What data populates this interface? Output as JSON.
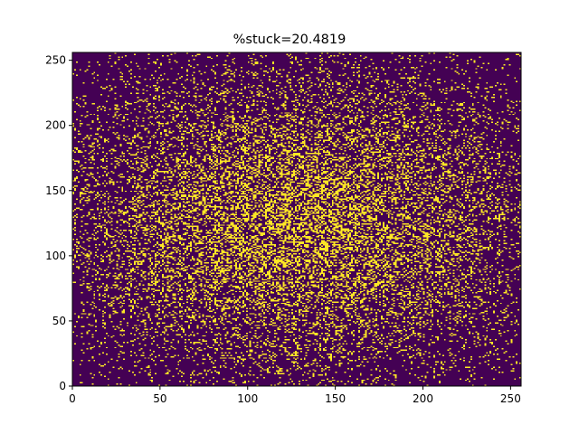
{
  "chart_data": {
    "type": "heatmap",
    "title": "%stuck=20.4819",
    "xlabel": "",
    "ylabel": "",
    "xlim": [
      0,
      256
    ],
    "ylim": [
      0,
      256
    ],
    "x_ticks": [
      0,
      50,
      100,
      150,
      200,
      250
    ],
    "y_ticks": [
      0,
      50,
      100,
      150,
      200,
      250
    ],
    "grid_size": 256,
    "stuck_fraction_percent": 20.4819,
    "density_center": [
      128,
      125
    ],
    "values_description": "binary grid, 1 = stuck cell; density highest near the center and falling off toward the edges",
    "colormap": "viridis",
    "colors": {
      "empty": "#440154",
      "stuck": "#fde725"
    },
    "grid": false,
    "legend": "none"
  }
}
